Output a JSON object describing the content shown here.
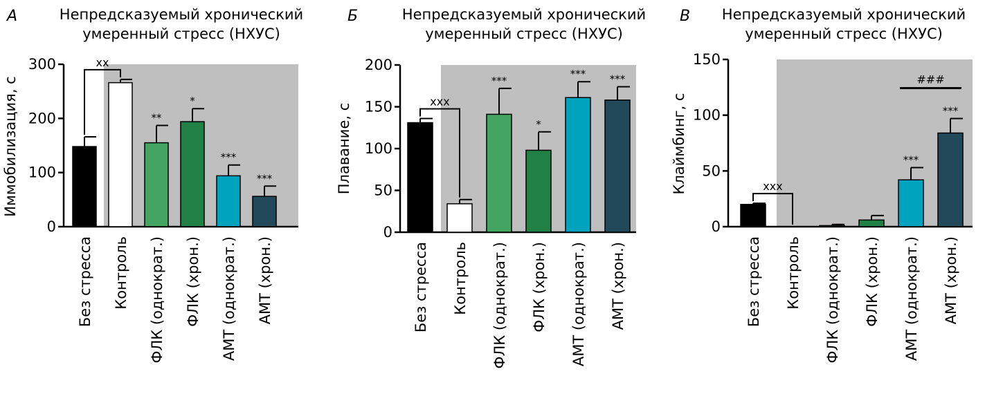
{
  "chart_data": [
    {
      "type": "bar",
      "panel_letter": "А",
      "title_lines": [
        "Непредсказуемый хронический",
        "умеренный стресс (НХУС)"
      ],
      "ylabel": "Иммобилизация, с",
      "ylim": [
        0,
        300
      ],
      "yticks": [
        "0",
        "100",
        "200",
        "300"
      ],
      "categories": [
        "Без стресса",
        "Контроль",
        "ФЛК (однократ.)",
        "ФЛК (хрон.)",
        "АМТ (однократ.)",
        "АМТ (хрон.)"
      ],
      "values": [
        148,
        266,
        155,
        194,
        94,
        56
      ],
      "errors": [
        18,
        6,
        32,
        24,
        20,
        19
      ],
      "annotations": [
        "",
        "",
        "**",
        "*",
        "***",
        "***"
      ],
      "bracket": {
        "from": 0,
        "to": 1,
        "label": "xx"
      },
      "group_line": null,
      "shaded_from": 1
    },
    {
      "type": "bar",
      "panel_letter": "Б",
      "title_lines": [
        "Непредсказуемый хронический",
        "умеренный стресс (НХУС)"
      ],
      "ylabel": "Плавание, с",
      "ylim": [
        0,
        200
      ],
      "yticks": [
        "0",
        "50",
        "100",
        "150",
        "200"
      ],
      "categories": [
        "Без стресса",
        "Контроль",
        "ФЛК (однократ.)",
        "ФЛК (хрон.)",
        "АМТ (однократ.)",
        "АМТ (хрон.)"
      ],
      "values": [
        131,
        34,
        141,
        98,
        161,
        158
      ],
      "errors": [
        5,
        5,
        31,
        22,
        19,
        16
      ],
      "annotations": [
        "",
        "",
        "***",
        "*",
        "***",
        "***"
      ],
      "bracket": {
        "from": 0,
        "to": 1,
        "label": "xxx"
      },
      "group_line": null,
      "shaded_from": 1
    },
    {
      "type": "bar",
      "panel_letter": "В",
      "title_lines": [
        "Непредсказуемый хронический",
        "умеренный стресс (НХУС)"
      ],
      "ylabel": "Клаймбинг, с",
      "ylim": [
        0,
        150
      ],
      "yticks": [
        "0",
        "50",
        "100",
        "150"
      ],
      "categories": [
        "Без стресса",
        "Контроль",
        "ФЛК (однократ.)",
        "ФЛК (хрон.)",
        "АМТ (однократ.)",
        "АМТ (хрон.)"
      ],
      "values": [
        20,
        0,
        1,
        6,
        42,
        84
      ],
      "errors": [
        1,
        0,
        1,
        4,
        11,
        13
      ],
      "annotations": [
        "",
        "",
        "",
        "",
        "***",
        "***"
      ],
      "bracket": {
        "from": 0,
        "to": 1,
        "label": "xxx"
      },
      "group_line": {
        "from": 4,
        "to": 5,
        "label": "###"
      },
      "shaded_from": 1
    }
  ],
  "colors": {
    "shade": "#bfbfbf",
    "bars": [
      "#000000",
      "#ffffff",
      "#44a462",
      "#218045",
      "#00a3bd",
      "#21495a"
    ],
    "axis": "#000000"
  }
}
